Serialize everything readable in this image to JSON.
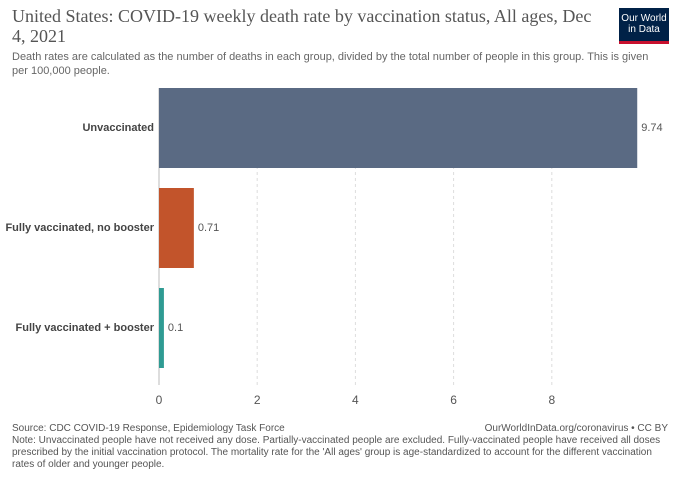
{
  "logo": "Our World in Data",
  "chart_data": {
    "type": "bar",
    "orientation": "horizontal",
    "title": "United States: COVID-19 weekly death rate by vaccination status, All ages, Dec 4, 2021",
    "subtitle": "Death rates are calculated as the number of deaths in each group, divided by the total number of people in this group. This is given per 100,000 people.",
    "categories": [
      "Unvaccinated",
      "Fully vaccinated, no booster",
      "Fully vaccinated + booster"
    ],
    "values": [
      9.74,
      0.71,
      0.1
    ],
    "colors": [
      "#5a6a83",
      "#c2542b",
      "#2f9b93"
    ],
    "xlim": [
      0,
      10
    ],
    "xticks": [
      0,
      2,
      4,
      6,
      8
    ],
    "grid": true,
    "source": "Source: CDC COVID-19 Response, Epidemiology Task Force",
    "credit": "OurWorldInData.org/coronavirus • CC BY",
    "note": "Note: Unvaccinated people have not received any dose. Partially-vaccinated people are excluded. Fully-vaccinated people have received all doses prescribed by the initial vaccination protocol. The mortality rate for the 'All ages' group is age-standardized to account for the different vaccination rates of older and younger people."
  }
}
